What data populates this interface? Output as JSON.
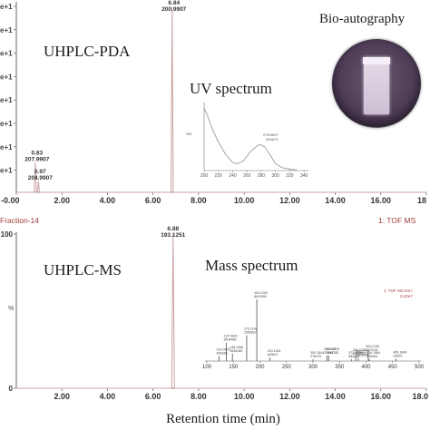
{
  "labels": {
    "bioautography": "Bio-autography",
    "uhplc_pda": "UHPLC-PDA",
    "uv_spectrum": "UV spectrum",
    "uhplc_ms": "UHPLC-MS",
    "mass_spectrum": "Mass spectrum",
    "x_axis_title": "Retention time (min)",
    "fraction": "Fraction-14",
    "tof_ms_right": "1: TOF MS",
    "tof_ms_inset": "1: TOF MS ES+",
    "tof_ms_inset_scale": "3.22e7",
    "percent_label": "%"
  },
  "colors": {
    "trace": "#c9a3a3",
    "axis": "#444444",
    "fraction_red": "#a23b3b",
    "uv_line": "#9b9b9b",
    "ms_bars": "#333333",
    "dish_dark": "#4f3d58",
    "band": "#e9e0ee"
  },
  "chart_data": [
    {
      "type": "line",
      "panel": "UHPLC-PDA",
      "xlim": [
        0,
        18
      ],
      "x_ticks": [
        "-0.00",
        "2.00",
        "4.00",
        "6.00",
        "8.00",
        "10.00",
        "12.00",
        "14.00",
        "16.00",
        "18"
      ],
      "y_ticks": [
        "e+1",
        "e+1",
        "e+1",
        "e+1",
        "e+1",
        "e+1",
        "e+1",
        "e+1"
      ],
      "peaks": [
        {
          "rt": 0.83,
          "mz": "207.9907",
          "label_rt": "0.83",
          "rel_height": 0.16
        },
        {
          "rt": 0.97,
          "mz": "204.9907",
          "label_rt": "0.97",
          "rel_height": 0.06
        },
        {
          "rt": 6.84,
          "mz": "200.9907",
          "label_rt": "6.84",
          "rel_height": 1.0
        }
      ]
    },
    {
      "type": "line",
      "panel": "UV spectrum",
      "xlim": [
        200,
        350
      ],
      "x_ticks": [
        "200",
        "220",
        "240",
        "260",
        "280",
        "300",
        "320",
        "340"
      ],
      "ylabel": "AU",
      "peak_label": "278.9907",
      "peak_sub": "400673",
      "x": [
        200,
        205,
        212,
        220,
        230,
        240,
        246,
        255,
        265,
        275,
        279,
        285,
        293,
        300,
        310,
        320,
        330
      ],
      "y": [
        0.92,
        0.8,
        0.6,
        0.42,
        0.24,
        0.12,
        0.1,
        0.14,
        0.28,
        0.37,
        0.38,
        0.35,
        0.22,
        0.1,
        0.04,
        0.02,
        0.01
      ]
    },
    {
      "type": "line",
      "panel": "UHPLC-MS",
      "xlim": [
        0,
        18
      ],
      "ylim": [
        0,
        100
      ],
      "x_ticks": [
        "2.00",
        "4.00",
        "6.00",
        "8.00",
        "10.00",
        "12.00",
        "14.00",
        "16.00",
        "18.0"
      ],
      "y_ticks": [
        "0",
        "100"
      ],
      "ylabel": "%",
      "peaks": [
        {
          "rt": 6.88,
          "mz": "193.1251",
          "label_rt": "6.88",
          "rel_height": 1.0
        }
      ]
    },
    {
      "type": "bar",
      "panel": "Mass spectrum",
      "xlim": [
        100,
        500
      ],
      "x_ticks": [
        "100",
        "150",
        "200",
        "250",
        "300",
        "350",
        "400",
        "450",
        "500"
      ],
      "mz": [
        123.0475,
        137.0624,
        148.1356,
        175.1148,
        194.1253,
        219.1251,
        300.1544,
        326.1557,
        329.4973,
        380.2226,
        372.3226,
        385.2139,
        404.2159,
        406.1964,
        456.1849
      ],
      "intensity": [
        8,
        30,
        12,
        42,
        100,
        6,
        3,
        9,
        9,
        7,
        3,
        5,
        13,
        3,
        4
      ],
      "labels": [
        [
          "123.0475",
          "496266"
        ],
        [
          "137.0624",
          "8504486"
        ],
        [
          "148.1356",
          "1636186"
        ],
        [
          "175.1148",
          "2359837"
        ],
        [
          "194.1253",
          "8612594"
        ],
        [
          "219.1251",
          "649671"
        ],
        [
          "300.1544",
          "276479"
        ],
        [
          "326.1557",
          "2798174"
        ],
        [
          "329.4973",
          "2866773"
        ],
        [
          "380.2226",
          "2387763"
        ],
        [
          "372.3226",
          "580988"
        ],
        [
          "385.2139",
          "1463665"
        ],
        [
          "404.2159",
          "7879142"
        ],
        [
          "406.1964",
          "178284"
        ],
        [
          "456.1849",
          "23693"
        ]
      ]
    }
  ]
}
